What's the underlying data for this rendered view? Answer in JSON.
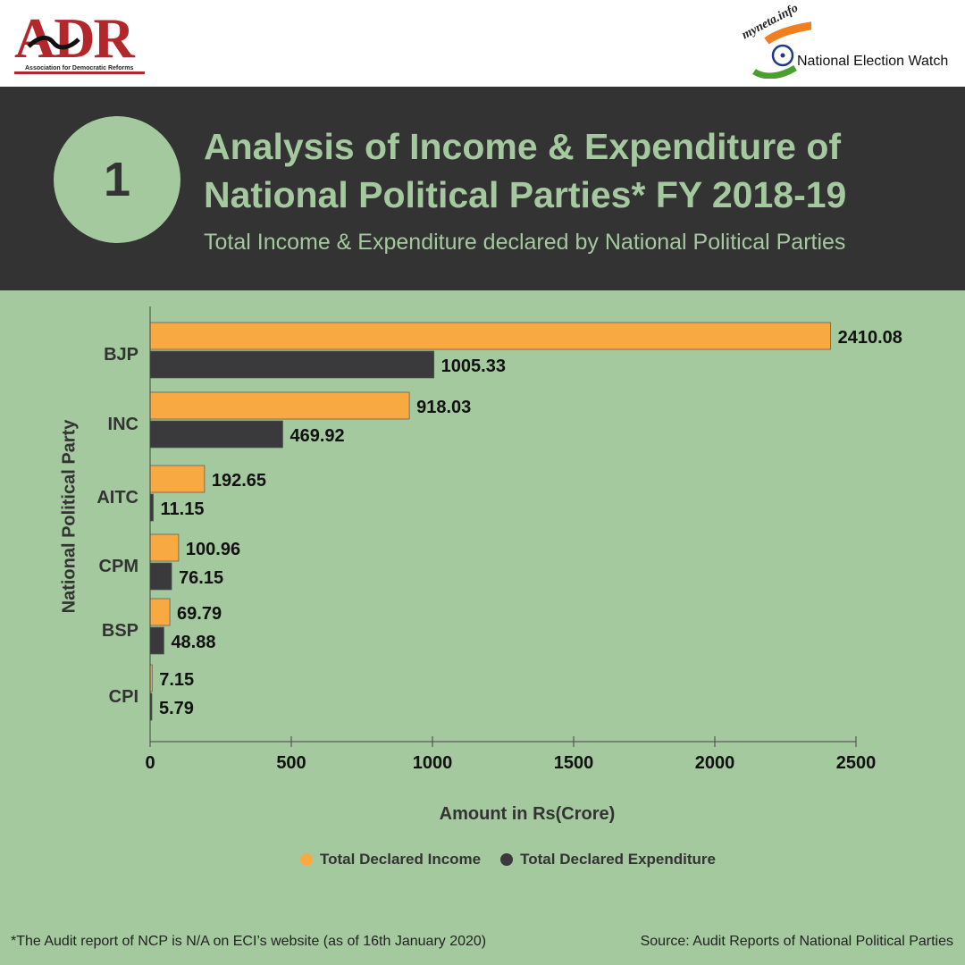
{
  "logos": {
    "adr": {
      "letters": "ADR",
      "tagline": "Association for Democratic Reforms"
    },
    "new": {
      "site": "myneta.info",
      "name": "National Election Watch"
    }
  },
  "header": {
    "number": "1",
    "title": "Analysis of Income & Expenditure of National Political Parties* FY 2018-19",
    "subtitle": "Total Income & Expenditure declared by National Political Parties"
  },
  "colors": {
    "background": "#a5c99f",
    "header": "#333333",
    "income": "#f9a942",
    "expenditure": "#3a3a3c"
  },
  "chart_data": {
    "type": "bar",
    "orientation": "horizontal",
    "categories": [
      "BJP",
      "INC",
      "AITC",
      "CPM",
      "BSP",
      "CPI"
    ],
    "series": [
      {
        "name": "Total Declared Income",
        "values": [
          2410.08,
          918.03,
          192.65,
          100.96,
          69.79,
          7.15
        ]
      },
      {
        "name": "Total Declared Expenditure",
        "values": [
          1005.33,
          469.92,
          11.15,
          76.15,
          48.88,
          5.79
        ]
      }
    ],
    "value_labels": [
      [
        "2410.08",
        "918.03",
        "192.65",
        "100.96",
        "69.79",
        "7.15"
      ],
      [
        "1005.33",
        "469.92",
        "11.15",
        "76.15",
        "48.88",
        "5.79"
      ]
    ],
    "xlabel": "Amount in Rs(Crore)",
    "ylabel": "National Political Party",
    "xlim": [
      0,
      2500
    ],
    "xticks": [
      0,
      500,
      1000,
      1500,
      2000,
      2500
    ],
    "grid": false,
    "legend": "bottom"
  },
  "footer": {
    "note": "*The Audit report of NCP is N/A on ECI’s website (as of 16th January 2020)",
    "source": "Source: Audit Reports of National Political Parties"
  }
}
